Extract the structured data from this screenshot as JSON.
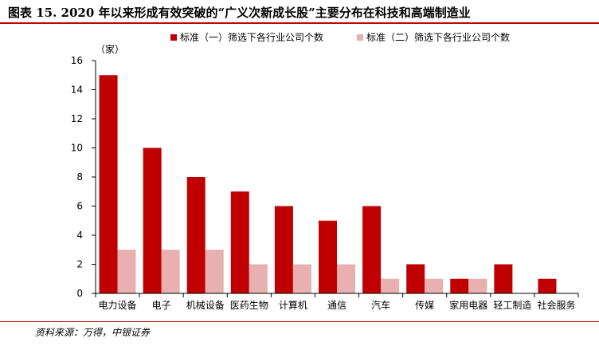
{
  "figure": {
    "title": "图表 15. 2020 年以来形成有效突破的“广义次新成长股”主要分布在科技和高端制造业",
    "source": "资料来源：万得，中银证券"
  },
  "colors": {
    "series1": "#c00000",
    "series2": "#e8b0b0",
    "rule": "#c00000",
    "axis": "#000000"
  },
  "chart_data": {
    "type": "bar",
    "title": "",
    "xlabel": "",
    "ylabel": "（家）",
    "ylim": [
      0,
      16
    ],
    "yticks": [
      0,
      2,
      4,
      6,
      8,
      10,
      12,
      14,
      16
    ],
    "grid": false,
    "legend_position": "top",
    "categories": [
      "电力设备",
      "电子",
      "机械设备",
      "医药生物",
      "计算机",
      "通信",
      "汽车",
      "传媒",
      "家用电器",
      "轻工制造",
      "社会服务"
    ],
    "series": [
      {
        "name": "标准（一）筛选下各行业公司个数",
        "values": [
          15,
          10,
          8,
          7,
          6,
          5,
          6,
          2,
          1,
          2,
          1
        ]
      },
      {
        "name": "标准（二）筛选下各行业公司个数",
        "values": [
          3,
          3,
          3,
          2,
          2,
          2,
          1,
          1,
          1,
          0,
          0
        ]
      }
    ]
  }
}
